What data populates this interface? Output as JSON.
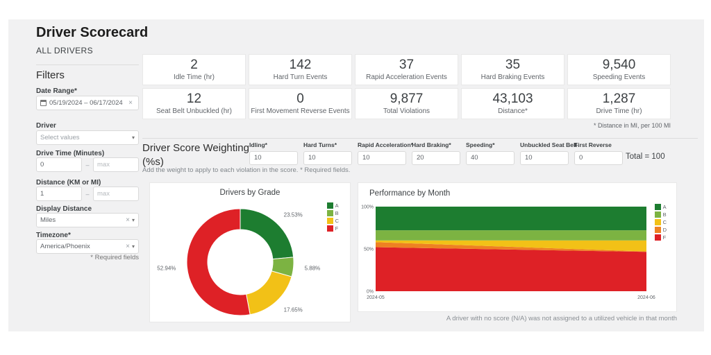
{
  "page": {
    "title": "Driver Scorecard",
    "subtitle": "ALL DRIVERS"
  },
  "filters": {
    "heading": "Filters",
    "date_range": {
      "label": "Date Range*",
      "value": "05/19/2024 – 06/17/2024"
    },
    "driver": {
      "label": "Driver",
      "placeholder": "Select values"
    },
    "drive_time": {
      "label": "Drive Time (Minutes)",
      "min_value": "0",
      "max_placeholder": "max"
    },
    "distance": {
      "label": "Distance (KM or MI)",
      "min_value": "1",
      "max_placeholder": "max"
    },
    "display_distance": {
      "label": "Display Distance",
      "value": "Miles"
    },
    "timezone": {
      "label": "Timezone*",
      "value": "America/Phoenix"
    },
    "range_separator": "–",
    "clear_icon": "×",
    "chevron_icon": "▾",
    "required_note": "* Required fields"
  },
  "kpis": [
    {
      "value": "2",
      "label": "Idle Time (hr)"
    },
    {
      "value": "142",
      "label": "Hard Turn Events"
    },
    {
      "value": "37",
      "label": "Rapid Acceleration Events"
    },
    {
      "value": "35",
      "label": "Hard Braking Events"
    },
    {
      "value": "9,540",
      "label": "Speeding Events"
    },
    {
      "value": "12",
      "label": "Seat Belt Unbuckled (hr)"
    },
    {
      "value": "0",
      "label": "First Movement Reverse Events"
    },
    {
      "value": "9,877",
      "label": "Total Violations"
    },
    {
      "value": "43,103",
      "label": "Distance*"
    },
    {
      "value": "1,287",
      "label": "Drive Time (hr)"
    }
  ],
  "kpi_footnote": "* Distance in MI, per 100 MI",
  "weighting": {
    "title": "Driver Score Weighting (%s)",
    "hint": "Add the weight to apply to each violation in the score. * Required fields.",
    "fields": [
      {
        "label": "Idling*",
        "value": "10"
      },
      {
        "label": "Hard Turns*",
        "value": "10"
      },
      {
        "label": "Rapid Acceleration*",
        "value": "10"
      },
      {
        "label": "Hard Braking*",
        "value": "20"
      },
      {
        "label": "Speeding*",
        "value": "40"
      },
      {
        "label": "Unbuckled Seat Belt",
        "value": "10"
      },
      {
        "label": "First Reverse",
        "value": "0"
      }
    ],
    "total": "Total = 100"
  },
  "chart_data": [
    {
      "type": "pie",
      "subtype": "donut",
      "title": "Drivers by Grade",
      "legend_position": "top-right",
      "slices": [
        {
          "label": "A",
          "value": 23.53,
          "display": "23.53%",
          "color": "#1d7d30"
        },
        {
          "label": "B",
          "value": 5.88,
          "display": "5.88%",
          "color": "#7cb342"
        },
        {
          "label": "C",
          "value": 17.65,
          "display": "17.65%",
          "color": "#f2c117"
        },
        {
          "label": "F",
          "value": 52.94,
          "display": "52.94%",
          "color": "#de2126"
        }
      ]
    },
    {
      "type": "area",
      "subtype": "stacked-percent",
      "title": "Performance by Month",
      "legend_position": "top-right",
      "x": [
        "2024-05",
        "2024-06"
      ],
      "ylim": [
        0,
        100
      ],
      "yticks": [
        {
          "label": "100%",
          "value": 100
        },
        {
          "label": "50%",
          "value": 50
        },
        {
          "label": "0%",
          "value": 0
        }
      ],
      "series": [
        {
          "name": "A",
          "color": "#1d7d30",
          "values": [
            28,
            28
          ]
        },
        {
          "name": "B",
          "color": "#7cb342",
          "values": [
            12,
            12
          ]
        },
        {
          "name": "C",
          "color": "#f2c117",
          "values": [
            2,
            13
          ]
        },
        {
          "name": "D",
          "color": "#ee8122",
          "values": [
            6,
            0.5
          ]
        },
        {
          "name": "F",
          "color": "#de2126",
          "values": [
            52,
            46.5
          ]
        }
      ]
    }
  ],
  "bottom_footnote": "A driver with no score (N/A) was not assigned to a utilized vehicle in that month"
}
